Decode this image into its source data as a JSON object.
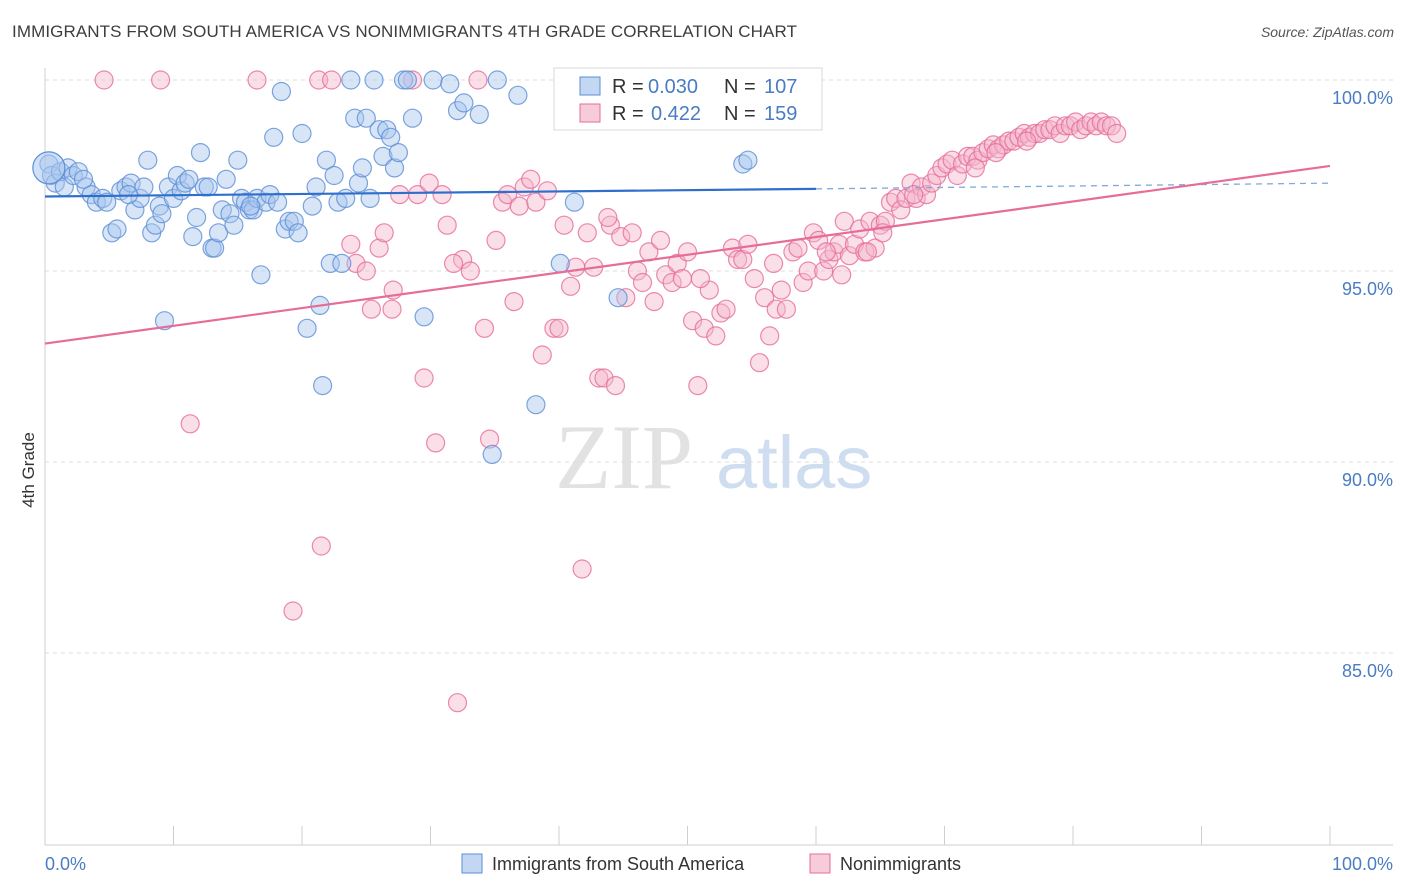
{
  "title": "IMMIGRANTS FROM SOUTH AMERICA VS NONIMMIGRANTS 4TH GRADE CORRELATION CHART",
  "source": "Source: ZipAtlas.com",
  "watermark": {
    "zip": "ZIP",
    "atlas": "atlas"
  },
  "chart_data": {
    "type": "scatter",
    "title": "IMMIGRANTS FROM SOUTH AMERICA VS NONIMMIGRANTS 4TH GRADE CORRELATION CHART",
    "xlabel": "",
    "ylabel": "4th Grade",
    "xlim": [
      0,
      100
    ],
    "ylim": [
      80.5,
      100.7
    ],
    "x_tick_labels": [
      "0.0%",
      "100.0%"
    ],
    "y_ticks": [
      100,
      95,
      90,
      85
    ],
    "y_tick_labels": [
      "100.0%",
      "95.0%",
      "90.0%",
      "85.0%"
    ],
    "grid": "horizontal dashed",
    "legend_position": "top-center",
    "colors": {
      "blue": "#5b8fd6",
      "blue_fill": "#a9c6ee",
      "pink": "#e66d98",
      "pink_fill": "#f4b6cb",
      "tick_label": "#4a7cc4"
    },
    "legend_stats": [
      {
        "r_label": "R =",
        "r": "0.030",
        "n_label": "N =",
        "n": "107"
      },
      {
        "r_label": "R =",
        "r": "0.422",
        "n_label": "N =",
        "n": "159"
      }
    ],
    "series": [
      {
        "name": "Immigrants from South America",
        "color": "#5b8fd6",
        "trend": {
          "x": [
            0,
            60
          ],
          "y": [
            96.95,
            97.15
          ],
          "dashed_extension": {
            "x": [
              60,
              100
            ],
            "y": [
              97.15,
              97.3
            ]
          }
        },
        "points": [
          [
            0.3,
            97.8
          ],
          [
            0.5,
            97.5
          ],
          [
            0.8,
            97.3
          ],
          [
            1.2,
            97.6
          ],
          [
            1.5,
            97.2
          ],
          [
            1.8,
            97.7
          ],
          [
            2.2,
            97.5
          ],
          [
            2.6,
            97.6
          ],
          [
            3.2,
            97.2
          ],
          [
            3.6,
            97.0
          ],
          [
            4.0,
            96.8
          ],
          [
            4.5,
            96.9
          ],
          [
            4.8,
            96.8
          ],
          [
            5.2,
            96.0
          ],
          [
            5.6,
            96.1
          ],
          [
            5.9,
            97.1
          ],
          [
            6.3,
            97.2
          ],
          [
            6.7,
            97.3
          ],
          [
            7.0,
            96.6
          ],
          [
            7.4,
            96.9
          ],
          [
            7.7,
            97.2
          ],
          [
            8.0,
            97.9
          ],
          [
            8.3,
            96.0
          ],
          [
            8.6,
            96.2
          ],
          [
            8.9,
            96.7
          ],
          [
            9.1,
            96.5
          ],
          [
            9.3,
            93.7
          ],
          [
            9.6,
            97.2
          ],
          [
            10.0,
            96.9
          ],
          [
            10.3,
            97.5
          ],
          [
            10.6,
            97.1
          ],
          [
            10.9,
            97.3
          ],
          [
            11.2,
            97.4
          ],
          [
            11.5,
            95.9
          ],
          [
            11.8,
            96.4
          ],
          [
            12.1,
            98.1
          ],
          [
            12.4,
            97.2
          ],
          [
            12.7,
            97.2
          ],
          [
            13.0,
            95.6
          ],
          [
            13.2,
            95.6
          ],
          [
            13.5,
            96.0
          ],
          [
            13.8,
            96.6
          ],
          [
            14.1,
            97.4
          ],
          [
            14.4,
            96.5
          ],
          [
            14.7,
            96.2
          ],
          [
            15.0,
            97.9
          ],
          [
            15.3,
            96.9
          ],
          [
            15.6,
            96.8
          ],
          [
            15.9,
            96.6
          ],
          [
            16.2,
            96.6
          ],
          [
            16.5,
            96.9
          ],
          [
            16.8,
            94.9
          ],
          [
            17.2,
            96.8
          ],
          [
            17.5,
            97.0
          ],
          [
            17.8,
            98.5
          ],
          [
            18.1,
            96.8
          ],
          [
            18.4,
            99.7
          ],
          [
            18.7,
            96.1
          ],
          [
            19.0,
            96.3
          ],
          [
            19.4,
            96.3
          ],
          [
            19.7,
            96.0
          ],
          [
            20.0,
            98.6
          ],
          [
            20.4,
            93.5
          ],
          [
            20.8,
            96.7
          ],
          [
            21.1,
            97.2
          ],
          [
            21.4,
            94.1
          ],
          [
            21.6,
            92.0
          ],
          [
            21.9,
            97.9
          ],
          [
            22.2,
            95.2
          ],
          [
            22.5,
            97.5
          ],
          [
            22.8,
            96.8
          ],
          [
            23.1,
            95.2
          ],
          [
            23.4,
            96.9
          ],
          [
            23.8,
            100.0
          ],
          [
            24.1,
            99.0
          ],
          [
            24.4,
            97.3
          ],
          [
            24.7,
            97.7
          ],
          [
            25.0,
            99.0
          ],
          [
            25.3,
            96.9
          ],
          [
            25.6,
            100.0
          ],
          [
            26.0,
            98.7
          ],
          [
            26.3,
            98.0
          ],
          [
            26.6,
            98.7
          ],
          [
            26.9,
            98.5
          ],
          [
            27.2,
            97.7
          ],
          [
            27.5,
            98.1
          ],
          [
            27.9,
            100.0
          ],
          [
            28.2,
            100.0
          ],
          [
            28.6,
            99.0
          ],
          [
            29.5,
            93.8
          ],
          [
            30.2,
            100.0
          ],
          [
            31.5,
            99.9
          ],
          [
            32.1,
            99.2
          ],
          [
            32.6,
            99.4
          ],
          [
            33.8,
            99.1
          ],
          [
            34.8,
            90.2
          ],
          [
            35.2,
            100.0
          ],
          [
            36.8,
            99.6
          ],
          [
            38.2,
            91.5
          ],
          [
            40.1,
            95.2
          ],
          [
            41.2,
            96.8
          ],
          [
            44.6,
            94.3
          ],
          [
            54.3,
            97.8
          ],
          [
            54.7,
            97.9
          ],
          [
            3.0,
            97.4
          ],
          [
            6.5,
            97.0
          ],
          [
            16.0,
            96.7
          ]
        ]
      },
      {
        "name": "Nonimmigrants",
        "color": "#e66d98",
        "trend": {
          "x": [
            0,
            100
          ],
          "y": [
            93.1,
            97.75
          ]
        },
        "points": [
          [
            4.6,
            100.0
          ],
          [
            9.0,
            100.0
          ],
          [
            11.3,
            91.0
          ],
          [
            16.5,
            100.0
          ],
          [
            19.3,
            86.1
          ],
          [
            21.3,
            100.0
          ],
          [
            21.5,
            87.8
          ],
          [
            22.3,
            100.0
          ],
          [
            23.8,
            95.7
          ],
          [
            24.2,
            95.2
          ],
          [
            25.0,
            95.0
          ],
          [
            25.4,
            94.0
          ],
          [
            26.0,
            95.6
          ],
          [
            26.4,
            96.0
          ],
          [
            27.1,
            94.5
          ],
          [
            27.6,
            97.0
          ],
          [
            28.6,
            100.0
          ],
          [
            29.0,
            97.0
          ],
          [
            29.5,
            92.2
          ],
          [
            29.9,
            97.3
          ],
          [
            30.4,
            90.5
          ],
          [
            30.9,
            97.0
          ],
          [
            31.3,
            96.2
          ],
          [
            32.1,
            83.7
          ],
          [
            32.5,
            95.3
          ],
          [
            33.1,
            95.0
          ],
          [
            33.7,
            100.0
          ],
          [
            34.2,
            93.5
          ],
          [
            34.6,
            90.6
          ],
          [
            35.1,
            95.8
          ],
          [
            35.6,
            96.8
          ],
          [
            36.0,
            97.0
          ],
          [
            36.5,
            94.2
          ],
          [
            36.9,
            96.7
          ],
          [
            37.3,
            97.2
          ],
          [
            37.8,
            97.4
          ],
          [
            38.2,
            96.8
          ],
          [
            38.7,
            92.8
          ],
          [
            39.1,
            97.1
          ],
          [
            39.6,
            93.5
          ],
          [
            40.0,
            93.5
          ],
          [
            40.4,
            96.2
          ],
          [
            40.9,
            94.6
          ],
          [
            41.3,
            95.1
          ],
          [
            41.8,
            87.2
          ],
          [
            42.2,
            96.0
          ],
          [
            42.7,
            95.1
          ],
          [
            43.1,
            92.2
          ],
          [
            43.5,
            92.2
          ],
          [
            44.0,
            96.2
          ],
          [
            44.4,
            92.0
          ],
          [
            44.8,
            95.9
          ],
          [
            45.2,
            94.3
          ],
          [
            45.7,
            96.0
          ],
          [
            46.1,
            95.0
          ],
          [
            46.5,
            94.7
          ],
          [
            47.0,
            95.5
          ],
          [
            47.4,
            94.2
          ],
          [
            47.9,
            95.8
          ],
          [
            48.3,
            94.9
          ],
          [
            48.8,
            94.7
          ],
          [
            49.2,
            95.2
          ],
          [
            49.6,
            94.8
          ],
          [
            50.0,
            95.5
          ],
          [
            50.4,
            93.7
          ],
          [
            50.8,
            92.0
          ],
          [
            51.3,
            93.5
          ],
          [
            51.7,
            94.5
          ],
          [
            52.2,
            93.3
          ],
          [
            52.6,
            93.9
          ],
          [
            53.0,
            94.0
          ],
          [
            53.5,
            95.6
          ],
          [
            53.9,
            95.3
          ],
          [
            54.3,
            95.3
          ],
          [
            54.7,
            95.7
          ],
          [
            55.2,
            94.8
          ],
          [
            55.6,
            92.6
          ],
          [
            56.0,
            94.3
          ],
          [
            56.4,
            93.3
          ],
          [
            56.9,
            94.0
          ],
          [
            57.3,
            94.5
          ],
          [
            57.7,
            94.0
          ],
          [
            58.2,
            95.5
          ],
          [
            58.6,
            95.6
          ],
          [
            59.0,
            94.7
          ],
          [
            59.4,
            95.0
          ],
          [
            59.8,
            96.0
          ],
          [
            60.2,
            95.8
          ],
          [
            60.6,
            95.0
          ],
          [
            61.0,
            95.3
          ],
          [
            61.4,
            95.5
          ],
          [
            61.8,
            95.7
          ],
          [
            62.2,
            96.3
          ],
          [
            62.6,
            95.4
          ],
          [
            63.0,
            95.7
          ],
          [
            63.4,
            96.1
          ],
          [
            63.8,
            95.5
          ],
          [
            64.2,
            96.3
          ],
          [
            64.6,
            95.6
          ],
          [
            65.0,
            96.2
          ],
          [
            65.4,
            96.3
          ],
          [
            65.8,
            96.8
          ],
          [
            66.2,
            96.9
          ],
          [
            66.6,
            96.6
          ],
          [
            67.0,
            96.9
          ],
          [
            67.4,
            97.3
          ],
          [
            67.8,
            96.9
          ],
          [
            68.2,
            97.2
          ],
          [
            68.6,
            97.0
          ],
          [
            69.0,
            97.3
          ],
          [
            69.4,
            97.5
          ],
          [
            69.8,
            97.7
          ],
          [
            70.2,
            97.8
          ],
          [
            70.6,
            97.9
          ],
          [
            71.0,
            97.5
          ],
          [
            71.4,
            97.8
          ],
          [
            71.8,
            98.0
          ],
          [
            72.2,
            98.0
          ],
          [
            72.6,
            97.9
          ],
          [
            73.0,
            98.1
          ],
          [
            73.4,
            98.2
          ],
          [
            73.8,
            98.3
          ],
          [
            74.2,
            98.2
          ],
          [
            74.6,
            98.3
          ],
          [
            75.0,
            98.4
          ],
          [
            75.4,
            98.4
          ],
          [
            75.8,
            98.5
          ],
          [
            76.2,
            98.6
          ],
          [
            76.6,
            98.5
          ],
          [
            77.0,
            98.6
          ],
          [
            77.4,
            98.6
          ],
          [
            77.8,
            98.7
          ],
          [
            78.2,
            98.7
          ],
          [
            78.6,
            98.8
          ],
          [
            79.0,
            98.6
          ],
          [
            79.4,
            98.8
          ],
          [
            79.8,
            98.8
          ],
          [
            80.2,
            98.9
          ],
          [
            80.6,
            98.7
          ],
          [
            81.0,
            98.8
          ],
          [
            81.4,
            98.9
          ],
          [
            81.8,
            98.8
          ],
          [
            82.2,
            98.9
          ],
          [
            82.6,
            98.8
          ],
          [
            83.0,
            98.8
          ],
          [
            83.4,
            98.6
          ],
          [
            27.0,
            94.0
          ],
          [
            31.8,
            95.2
          ],
          [
            43.8,
            96.4
          ],
          [
            51.0,
            94.8
          ],
          [
            56.7,
            95.2
          ],
          [
            60.8,
            95.5
          ],
          [
            62.0,
            94.9
          ],
          [
            65.2,
            96.0
          ],
          [
            67.6,
            97.0
          ],
          [
            72.4,
            97.7
          ],
          [
            74.0,
            98.1
          ],
          [
            76.4,
            98.4
          ],
          [
            64.0,
            95.5
          ]
        ]
      }
    ]
  },
  "legend": {
    "items": [
      "Immigrants from South America",
      "Nonimmigrants"
    ]
  }
}
